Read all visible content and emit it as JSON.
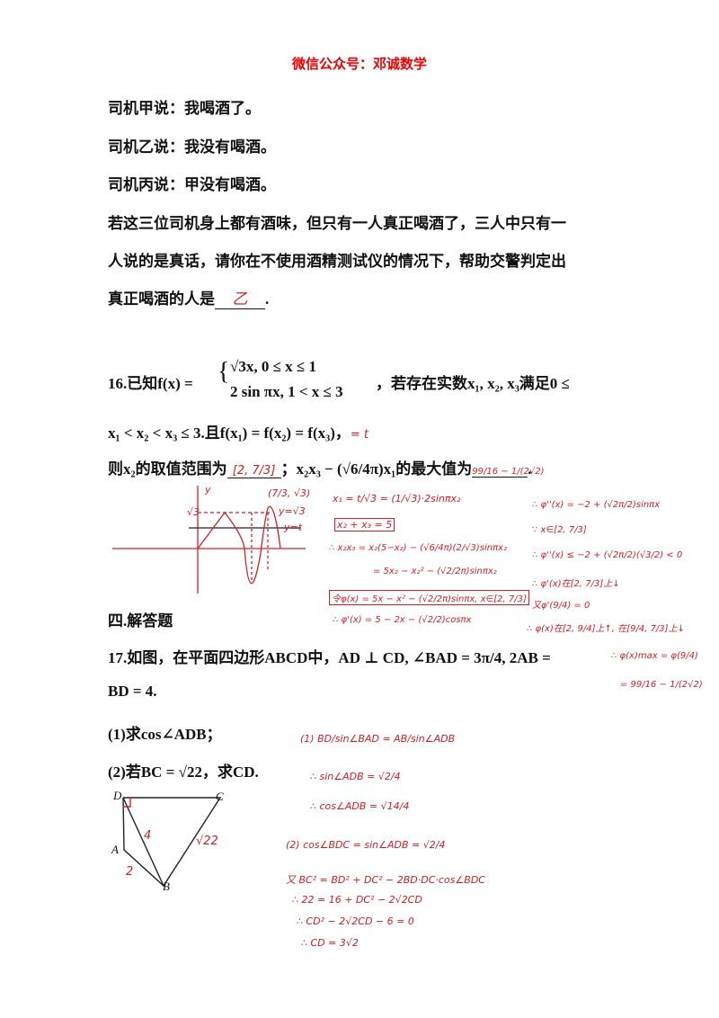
{
  "header": {
    "title": "微信公众号：邓诚数学"
  },
  "problem15": {
    "lines": [
      "司机甲说：我喝酒了。",
      "司机乙说：我没有喝酒。",
      "司机丙说：甲没有喝酒。",
      "若这三位司机身上都有酒味，但只有一人真正喝酒了，三人中只有一",
      "人说的是真话，请你在不使用酒精测试仪的情况下，帮助交警判定出",
      "真正喝酒的人是"
    ],
    "end": ".",
    "answer": "乙"
  },
  "problem16": {
    "line1_start": "16.已知f(x) =",
    "case1": "√3x, 0 ≤ x ≤ 1",
    "case2": "2 sin πx, 1 < x ≤ 3",
    "line1_end": "，若存在实数x₁, x₂, x₃满足0 ≤",
    "line2": "x₁ < x₂ < x₃ ≤ 3.且f(x₁) = f(x₂) = f(x₃)，",
    "note_t": "= t",
    "line3_a": "则x₂的取值范围为",
    "line3_b": "；x₂x₃ − (√6/4π)x₁的最大值为",
    "line3_end": ".",
    "answer1": "[2, 7/3]",
    "answer2": "99/16 − 1/(2√2)"
  },
  "section": "四.解答题",
  "problem17": {
    "line1": "17.如图，在平面四边形ABCD中，AD ⊥ CD, ∠BAD = 3π/4, 2AB =",
    "line2": "BD = 4.",
    "q1": "(1)求cos∠ADB；",
    "q2": "(2)若BC = √22，求CD.",
    "figure": {
      "D": "D",
      "C": "C",
      "A": "A",
      "B": "B",
      "note_bd": "4",
      "note_ab": "2",
      "note_bc": "√22"
    }
  },
  "graph_notes": {
    "y": "y",
    "point": "(7/3, √3)",
    "sqrt3": "√3",
    "y_sqrt3": "y=√3",
    "y_t": "y=t"
  },
  "notes16": [
    "x₁ = t/√3 = (1/√3)·2sinπx₂",
    "x₂ + x₃ = 5",
    "∴ x₂x₃ = x₂(5−x₂) − (√6/4π)(2/√3)sinπx₂",
    "= 5x₂ − x₂² − (√2/2π)sinπx₂",
    "令φ(x) = 5x − x² − (√2/2π)sinπx, x∈[2, 7/3]",
    "∴ φ'(x) = 5 − 2x − (√2/2)cosπx"
  ],
  "notes16_right": [
    "∴ φ''(x) = −2 + (√2π/2)sinπx",
    "∵ x∈[2, 7/3]",
    "∴ φ''(x) ≤ −2 + (√2π/2)(√3/2) < 0",
    "∴ φ'(x)在[2, 7/3]上↓",
    "又φ'(9/4) = 0",
    "∴ φ(x)在[2, 9/4]上↑, 在[9/4, 7/3]上↓",
    "∴ φ(x)max = φ(9/4)",
    "= 99/16 − 1/(2√2)"
  ],
  "notes17": [
    "(1) BD/sin∠BAD = AB/sin∠ADB",
    "∴ sin∠ADB = √2/4",
    "∴ cos∠ADB = √14/4",
    "(2) cos∠BDC = sin∠ADB = √2/4",
    "又 BC² = BD² + DC² − 2BD·DC·cos∠BDC",
    "∴ 22 = 16 + DC² − 2√2CD",
    "∴ CD² − 2√2CD − 6 = 0",
    "∴ CD = 3√2"
  ]
}
